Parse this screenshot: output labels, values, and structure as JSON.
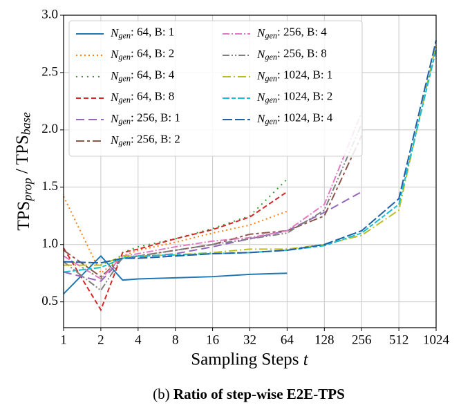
{
  "chart_data": {
    "type": "line",
    "xlabel": "Sampling Steps t",
    "ylabel": "TPS_prop / TPS_base",
    "caption_label": "(b)",
    "caption_text": "Ratio of step-wise E2E-TPS",
    "xscale": "log2",
    "grid": true,
    "legend": "upper left",
    "xlim": [
      1,
      1024
    ],
    "ylim": [
      0.275,
      3.0
    ],
    "xticks": [
      1,
      2,
      4,
      8,
      16,
      32,
      64,
      128,
      256,
      512,
      1024
    ],
    "yticks": [
      {
        "value": 0.5,
        "label": "0.5"
      },
      {
        "value": 1,
        "label": "1.0"
      },
      {
        "value": 1.5,
        "label": "1.5"
      },
      {
        "value": 2,
        "label": "2.0"
      },
      {
        "value": 2.5,
        "label": "2.5"
      },
      {
        "value": 3,
        "label": "3.0"
      }
    ],
    "series": [
      {
        "name": "N_gen: 64, B: 1",
        "color": "#1f77b4",
        "dash": "",
        "x": [
          1,
          2,
          3,
          4,
          8,
          16,
          32,
          64
        ],
        "values": [
          0.57,
          0.9,
          0.69,
          0.7,
          0.71,
          0.72,
          0.74,
          0.75
        ]
      },
      {
        "name": "N_gen: 64, B: 2",
        "color": "#ff7f0e",
        "dash": "2,4",
        "x": [
          1,
          2,
          3,
          4,
          8,
          16,
          32,
          64
        ],
        "values": [
          1.42,
          0.75,
          0.9,
          0.95,
          1.02,
          1.1,
          1.17,
          1.29
        ]
      },
      {
        "name": "N_gen: 64, B: 4",
        "color": "#2ca02c",
        "dash": "2,6",
        "x": [
          1,
          2,
          3,
          4,
          8,
          16,
          32,
          64
        ],
        "values": [
          0.9,
          0.7,
          0.93,
          0.98,
          1.05,
          1.14,
          1.25,
          1.57
        ]
      },
      {
        "name": "N_gen: 64, B: 8",
        "color": "#d62728",
        "dash": "7,4",
        "x": [
          1,
          2,
          3,
          4,
          8,
          16,
          32,
          64
        ],
        "values": [
          0.97,
          0.43,
          0.93,
          0.96,
          1.05,
          1.13,
          1.24,
          1.46
        ]
      },
      {
        "name": "N_gen: 256, B: 1",
        "color": "#9467bd",
        "dash": "12,6",
        "x": [
          1,
          2,
          3,
          4,
          8,
          16,
          32,
          64,
          128,
          256
        ],
        "values": [
          0.76,
          0.68,
          0.88,
          0.89,
          0.92,
          0.98,
          1.05,
          1.12,
          1.28,
          1.46
        ]
      },
      {
        "name": "N_gen: 256, B: 2",
        "color": "#8c564b",
        "dash": "12,4,4,4",
        "x": [
          1,
          2,
          3,
          4,
          8,
          16,
          32,
          64,
          128,
          256
        ],
        "values": [
          0.95,
          0.72,
          0.88,
          0.9,
          0.95,
          1.0,
          1.09,
          1.12,
          1.25,
          1.95
        ]
      },
      {
        "name": "N_gen: 256, B: 4",
        "color": "#e377c2",
        "dash": "10,3,2,3",
        "x": [
          1,
          2,
          3,
          4,
          8,
          16,
          32,
          64,
          128,
          256
        ],
        "values": [
          0.9,
          0.7,
          0.9,
          0.92,
          0.98,
          1.03,
          1.06,
          1.12,
          1.35,
          2.15
        ]
      },
      {
        "name": "N_gen: 256, B: 8",
        "color": "#7f7f7f",
        "dash": "10,3,2,3,2,3",
        "x": [
          1,
          2,
          3,
          4,
          8,
          16,
          32,
          64,
          128,
          256
        ],
        "values": [
          0.85,
          0.6,
          0.89,
          0.9,
          0.95,
          1.0,
          1.05,
          1.1,
          1.3,
          2.05
        ]
      },
      {
        "name": "N_gen: 1024, B: 1",
        "color": "#bcbd22",
        "dash": "12,4,2,4",
        "x": [
          1,
          2,
          3,
          4,
          8,
          16,
          32,
          64,
          128,
          256,
          512,
          1024
        ],
        "values": [
          0.82,
          0.82,
          0.9,
          0.9,
          0.91,
          0.93,
          0.96,
          0.96,
          1.0,
          1.08,
          1.3,
          2.75
        ]
      },
      {
        "name": "N_gen: 1024, B: 2",
        "color": "#17becf",
        "dash": "10,3,6,3",
        "x": [
          1,
          2,
          3,
          4,
          8,
          16,
          32,
          64,
          128,
          256,
          512,
          1024
        ],
        "values": [
          0.76,
          0.8,
          0.88,
          0.9,
          0.91,
          0.92,
          0.93,
          0.95,
          0.99,
          1.1,
          1.35,
          2.7
        ]
      },
      {
        "name": "N_gen: 1024, B: 4",
        "color": "#1f5fa8",
        "dash": "14,4",
        "x": [
          1,
          2,
          3,
          4,
          8,
          16,
          32,
          64,
          128,
          256,
          512,
          1024
        ],
        "values": [
          0.85,
          0.84,
          0.88,
          0.88,
          0.9,
          0.92,
          0.93,
          0.95,
          1.0,
          1.12,
          1.4,
          2.78
        ]
      }
    ]
  }
}
